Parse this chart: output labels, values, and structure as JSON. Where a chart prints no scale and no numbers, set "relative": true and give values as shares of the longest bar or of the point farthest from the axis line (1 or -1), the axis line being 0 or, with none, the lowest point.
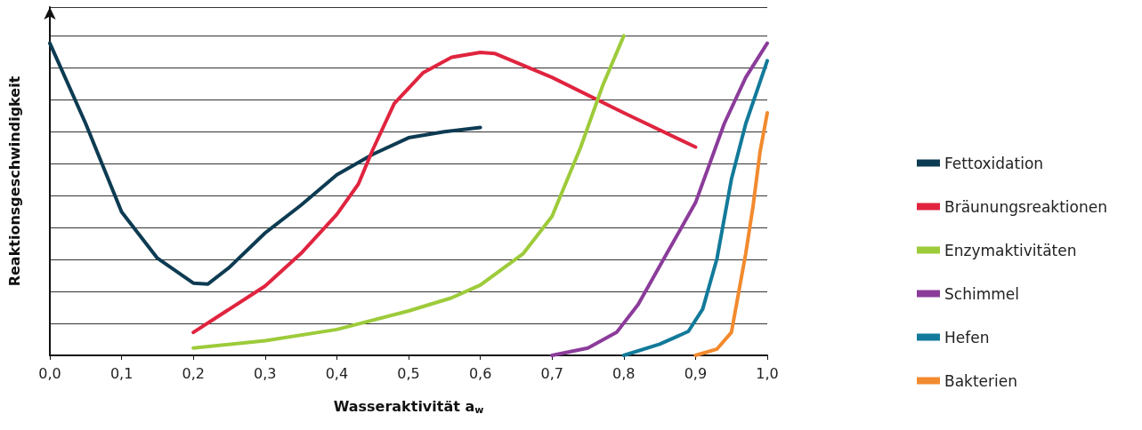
{
  "chart_data": {
    "type": "line",
    "relative": true,
    "xlabel": "Wasseraktivität a$_{w}$",
    "ylabel": "Reaktionsgeschwindigkeit",
    "xlim": [
      0,
      1
    ],
    "xticks": [
      {
        "value": 0,
        "label": "0,0"
      },
      {
        "value": 0.1,
        "label": "0,1"
      },
      {
        "value": 0.2,
        "label": "0,2"
      },
      {
        "value": 0.3,
        "label": "0,3"
      },
      {
        "value": 0.4,
        "label": "0,4"
      },
      {
        "value": 0.5,
        "label": "0,5"
      },
      {
        "value": 0.6,
        "label": "0,6"
      },
      {
        "value": 0.7,
        "label": "0,7"
      },
      {
        "value": 0.8,
        "label": "0,8"
      },
      {
        "value": 0.9,
        "label": "0,9"
      },
      {
        "value": 1,
        "label": "1,0"
      }
    ],
    "grid": "y",
    "legend": "right",
    "marker": "none",
    "line_style": "solid",
    "series": [
      {
        "name": "Fettoxidation",
        "color": "#0d3b52",
        "x": [
          0,
          0.05,
          0.1,
          0.15,
          0.2,
          0.22,
          0.25,
          0.3,
          0.35,
          0.4,
          0.45,
          0.5,
          0.55,
          0.6
        ],
        "values": [
          0.977,
          0.725,
          0.449,
          0.304,
          0.226,
          0.223,
          0.275,
          0.383,
          0.47,
          0.565,
          0.629,
          0.681,
          0.7,
          0.713
        ]
      },
      {
        "name": "Bräunungsreaktionen",
        "color": "#e0243f",
        "x": [
          0.2,
          0.3,
          0.35,
          0.4,
          0.43,
          0.45,
          0.48,
          0.52,
          0.56,
          0.6,
          0.62,
          0.7,
          0.8,
          0.9
        ],
        "values": [
          0.072,
          0.217,
          0.319,
          0.441,
          0.536,
          0.643,
          0.788,
          0.884,
          0.933,
          0.948,
          0.945,
          0.87,
          0.759,
          0.652
        ]
      },
      {
        "name": "Enzymaktivitäten",
        "color": "#9dcb3a",
        "x": [
          0.2,
          0.3,
          0.4,
          0.5,
          0.56,
          0.6,
          0.66,
          0.7,
          0.74,
          0.77,
          0.8
        ],
        "values": [
          0.023,
          0.046,
          0.081,
          0.139,
          0.18,
          0.22,
          0.319,
          0.435,
          0.652,
          0.841,
          1
        ]
      },
      {
        "name": "Schimmel",
        "color": "#8b3c9a",
        "x": [
          0.7,
          0.75,
          0.79,
          0.82,
          0.86,
          0.9,
          0.94,
          0.97,
          1
        ],
        "values": [
          0,
          0.023,
          0.072,
          0.159,
          0.319,
          0.478,
          0.725,
          0.87,
          0.977
        ]
      },
      {
        "name": "Hefen",
        "color": "#127a9a",
        "x": [
          0.8,
          0.85,
          0.89,
          0.91,
          0.93,
          0.95,
          0.97,
          1
        ],
        "values": [
          0,
          0.035,
          0.075,
          0.145,
          0.304,
          0.551,
          0.725,
          0.922
        ]
      },
      {
        "name": "Bakterien",
        "color": "#f28a2e",
        "x": [
          0.9,
          0.93,
          0.95,
          0.97,
          0.98,
          0.99,
          1
        ],
        "values": [
          0,
          0.02,
          0.072,
          0.319,
          0.464,
          0.638,
          0.759
        ]
      }
    ]
  }
}
